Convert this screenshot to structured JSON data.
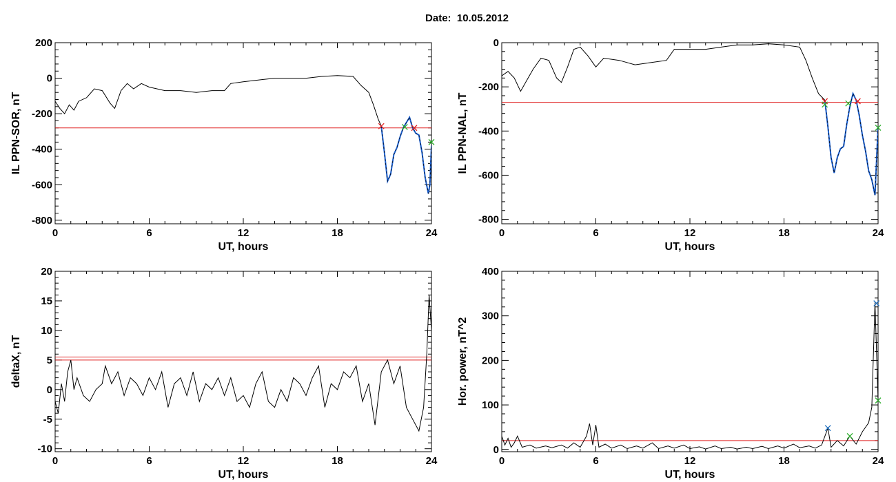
{
  "header": {
    "date_label": "Date:  10.05.2012"
  },
  "colors": {
    "threshold": "#e02020",
    "trace": "#000000",
    "highlight": "#1a5fd0",
    "marker_red": "#e02020",
    "marker_green": "#30b030",
    "marker_blue": "#2070c0"
  },
  "chart_data": [
    {
      "id": "il-sor",
      "type": "line",
      "xlabel": "UT, hours",
      "ylabel": "IL PPN-SOR, nT",
      "xlim": [
        0,
        24
      ],
      "ylim": [
        -820,
        200
      ],
      "xticks": [
        0,
        6,
        12,
        18,
        24
      ],
      "yticks": [
        -800,
        -600,
        -400,
        -200,
        0,
        200
      ],
      "thresholds": [
        -280
      ],
      "series": [
        {
          "values_xy": [
            [
              0,
              -130
            ],
            [
              0.3,
              -170
            ],
            [
              0.6,
              -200
            ],
            [
              0.9,
              -150
            ],
            [
              1.2,
              -180
            ],
            [
              1.5,
              -130
            ],
            [
              2,
              -110
            ],
            [
              2.5,
              -60
            ],
            [
              3,
              -70
            ],
            [
              3.5,
              -140
            ],
            [
              3.8,
              -170
            ],
            [
              4.2,
              -70
            ],
            [
              4.6,
              -30
            ],
            [
              5,
              -60
            ],
            [
              5.5,
              -30
            ],
            [
              6,
              -50
            ],
            [
              7,
              -70
            ],
            [
              8,
              -70
            ],
            [
              9,
              -80
            ],
            [
              10,
              -70
            ],
            [
              10.8,
              -70
            ],
            [
              11.2,
              -30
            ],
            [
              12,
              -20
            ],
            [
              13,
              -10
            ],
            [
              14,
              0
            ],
            [
              15,
              0
            ],
            [
              16,
              0
            ],
            [
              17,
              10
            ],
            [
              18,
              15
            ],
            [
              19,
              10
            ],
            [
              19.5,
              -40
            ],
            [
              20,
              -80
            ],
            [
              20.3,
              -150
            ],
            [
              20.6,
              -230
            ],
            [
              20.8,
              -270
            ]
          ]
        }
      ],
      "highlight": {
        "values_xy": [
          [
            20.8,
            -270
          ],
          [
            21,
            -420
          ],
          [
            21.2,
            -580
          ],
          [
            21.4,
            -540
          ],
          [
            21.6,
            -430
          ],
          [
            21.8,
            -390
          ],
          [
            22,
            -330
          ],
          [
            22.2,
            -280
          ],
          [
            22.4,
            -250
          ],
          [
            22.6,
            -220
          ],
          [
            22.8,
            -280
          ],
          [
            23,
            -310
          ],
          [
            23.2,
            -320
          ],
          [
            23.4,
            -420
          ],
          [
            23.6,
            -560
          ],
          [
            23.8,
            -650
          ],
          [
            23.9,
            -600
          ],
          [
            24,
            -380
          ]
        ]
      },
      "markers": [
        {
          "x": 20.8,
          "y": -270,
          "color": "red"
        },
        {
          "x": 22.3,
          "y": -275,
          "color": "green"
        },
        {
          "x": 22.9,
          "y": -280,
          "color": "red"
        },
        {
          "x": 24,
          "y": -360,
          "color": "green"
        }
      ]
    },
    {
      "id": "il-nal",
      "type": "line",
      "xlabel": "UT, hours",
      "ylabel": "IL PPN-NAL, nT",
      "xlim": [
        0,
        24
      ],
      "ylim": [
        -820,
        0
      ],
      "xticks": [
        0,
        6,
        12,
        18,
        24
      ],
      "yticks": [
        -800,
        -600,
        -400,
        -200,
        0
      ],
      "thresholds": [
        -270
      ],
      "series": [
        {
          "values_xy": [
            [
              0,
              -150
            ],
            [
              0.4,
              -130
            ],
            [
              0.8,
              -160
            ],
            [
              1.2,
              -220
            ],
            [
              1.6,
              -170
            ],
            [
              2,
              -120
            ],
            [
              2.5,
              -70
            ],
            [
              3,
              -80
            ],
            [
              3.5,
              -160
            ],
            [
              3.8,
              -180
            ],
            [
              4.2,
              -110
            ],
            [
              4.6,
              -30
            ],
            [
              5,
              -20
            ],
            [
              5.5,
              -60
            ],
            [
              6,
              -110
            ],
            [
              6.5,
              -70
            ],
            [
              7.5,
              -80
            ],
            [
              8.5,
              -100
            ],
            [
              9.5,
              -90
            ],
            [
              10.5,
              -80
            ],
            [
              11,
              -30
            ],
            [
              12,
              -30
            ],
            [
              13,
              -30
            ],
            [
              14,
              -20
            ],
            [
              15,
              -10
            ],
            [
              16,
              -10
            ],
            [
              17,
              -5
            ],
            [
              18,
              -10
            ],
            [
              19,
              -20
            ],
            [
              19.4,
              -80
            ],
            [
              19.8,
              -160
            ],
            [
              20.2,
              -230
            ],
            [
              20.6,
              -260
            ]
          ]
        }
      ],
      "highlight": {
        "values_xy": [
          [
            20.6,
            -260
          ],
          [
            20.8,
            -380
          ],
          [
            21,
            -520
          ],
          [
            21.2,
            -590
          ],
          [
            21.4,
            -520
          ],
          [
            21.6,
            -480
          ],
          [
            21.8,
            -470
          ],
          [
            22,
            -370
          ],
          [
            22.2,
            -290
          ],
          [
            22.4,
            -230
          ],
          [
            22.6,
            -260
          ],
          [
            22.8,
            -330
          ],
          [
            23,
            -420
          ],
          [
            23.2,
            -490
          ],
          [
            23.4,
            -580
          ],
          [
            23.6,
            -620
          ],
          [
            23.8,
            -690
          ],
          [
            24,
            -380
          ]
        ]
      },
      "markers": [
        {
          "x": 20.6,
          "y": -265,
          "color": "red"
        },
        {
          "x": 20.6,
          "y": -280,
          "color": "green"
        },
        {
          "x": 22.1,
          "y": -275,
          "color": "green"
        },
        {
          "x": 22.7,
          "y": -265,
          "color": "red"
        },
        {
          "x": 24,
          "y": -385,
          "color": "green"
        }
      ]
    },
    {
      "id": "deltax",
      "type": "line",
      "xlabel": "UT, hours",
      "ylabel": "deltaX, nT",
      "xlim": [
        0,
        24
      ],
      "ylim": [
        -10.5,
        20
      ],
      "xticks": [
        0,
        6,
        12,
        18,
        24
      ],
      "yticks": [
        -10,
        -5,
        0,
        5,
        10,
        15,
        20
      ],
      "thresholds": [
        5.5,
        5.0
      ],
      "series": [
        {
          "values_xy": [
            [
              0,
              -2
            ],
            [
              0.2,
              -4
            ],
            [
              0.4,
              1
            ],
            [
              0.6,
              -2
            ],
            [
              0.8,
              3
            ],
            [
              1,
              5
            ],
            [
              1.2,
              0
            ],
            [
              1.4,
              2
            ],
            [
              1.8,
              -1
            ],
            [
              2.2,
              -2
            ],
            [
              2.6,
              0
            ],
            [
              3,
              1
            ],
            [
              3.2,
              4
            ],
            [
              3.6,
              1
            ],
            [
              4,
              3
            ],
            [
              4.4,
              -1
            ],
            [
              4.8,
              2
            ],
            [
              5.2,
              1
            ],
            [
              5.6,
              -1
            ],
            [
              6,
              2
            ],
            [
              6.4,
              0
            ],
            [
              6.8,
              3
            ],
            [
              7.2,
              -3
            ],
            [
              7.6,
              1
            ],
            [
              8,
              2
            ],
            [
              8.4,
              -1
            ],
            [
              8.8,
              3
            ],
            [
              9.2,
              -2
            ],
            [
              9.6,
              1
            ],
            [
              10,
              0
            ],
            [
              10.4,
              2
            ],
            [
              10.8,
              -1
            ],
            [
              11.2,
              2
            ],
            [
              11.6,
              -2
            ],
            [
              12,
              -1
            ],
            [
              12.4,
              -3
            ],
            [
              12.8,
              1
            ],
            [
              13.2,
              3
            ],
            [
              13.6,
              -2
            ],
            [
              14,
              -3
            ],
            [
              14.4,
              0
            ],
            [
              14.8,
              -2
            ],
            [
              15.2,
              2
            ],
            [
              15.6,
              1
            ],
            [
              16,
              -1
            ],
            [
              16.4,
              2
            ],
            [
              16.8,
              4
            ],
            [
              17.2,
              -3
            ],
            [
              17.6,
              1
            ],
            [
              18,
              0
            ],
            [
              18.4,
              3
            ],
            [
              18.8,
              2
            ],
            [
              19.2,
              4
            ],
            [
              19.6,
              -2
            ],
            [
              20,
              1
            ],
            [
              20.4,
              -6
            ],
            [
              20.8,
              3
            ],
            [
              21.2,
              5
            ],
            [
              21.6,
              1
            ],
            [
              22,
              4
            ],
            [
              22.4,
              -3
            ],
            [
              22.8,
              -5
            ],
            [
              23.2,
              -7
            ],
            [
              23.5,
              -3
            ],
            [
              23.7,
              6
            ],
            [
              23.85,
              16
            ],
            [
              24,
              10
            ]
          ]
        }
      ],
      "markers": []
    },
    {
      "id": "hor-power",
      "type": "line",
      "xlabel": "UT, hours",
      "ylabel": "Hor. power, nT^2",
      "xlim": [
        0,
        24
      ],
      "ylim": [
        -5,
        400
      ],
      "xticks": [
        0,
        6,
        12,
        18,
        24
      ],
      "yticks": [
        0,
        100,
        200,
        300,
        400
      ],
      "thresholds": [
        20
      ],
      "series": [
        {
          "values_xy": [
            [
              0,
              30
            ],
            [
              0.2,
              10
            ],
            [
              0.4,
              25
            ],
            [
              0.6,
              5
            ],
            [
              0.8,
              15
            ],
            [
              1,
              30
            ],
            [
              1.3,
              5
            ],
            [
              1.8,
              10
            ],
            [
              2.2,
              3
            ],
            [
              2.8,
              8
            ],
            [
              3.2,
              4
            ],
            [
              3.8,
              10
            ],
            [
              4.2,
              3
            ],
            [
              4.6,
              15
            ],
            [
              5,
              5
            ],
            [
              5.4,
              30
            ],
            [
              5.6,
              58
            ],
            [
              5.8,
              10
            ],
            [
              6,
              55
            ],
            [
              6.2,
              5
            ],
            [
              6.6,
              12
            ],
            [
              7,
              3
            ],
            [
              7.6,
              10
            ],
            [
              8,
              2
            ],
            [
              8.6,
              8
            ],
            [
              9,
              3
            ],
            [
              9.6,
              15
            ],
            [
              10,
              2
            ],
            [
              10.6,
              8
            ],
            [
              11,
              3
            ],
            [
              11.6,
              10
            ],
            [
              12,
              2
            ],
            [
              12.6,
              6
            ],
            [
              13,
              1
            ],
            [
              13.6,
              8
            ],
            [
              14,
              2
            ],
            [
              14.6,
              5
            ],
            [
              15,
              1
            ],
            [
              15.6,
              5
            ],
            [
              16,
              2
            ],
            [
              16.6,
              7
            ],
            [
              17,
              2
            ],
            [
              17.6,
              8
            ],
            [
              18,
              3
            ],
            [
              18.6,
              12
            ],
            [
              19,
              4
            ],
            [
              19.6,
              8
            ],
            [
              20,
              3
            ],
            [
              20.4,
              10
            ],
            [
              20.8,
              48
            ],
            [
              21,
              5
            ],
            [
              21.4,
              20
            ],
            [
              21.8,
              8
            ],
            [
              22.2,
              30
            ],
            [
              22.6,
              12
            ],
            [
              23,
              40
            ],
            [
              23.4,
              60
            ],
            [
              23.6,
              95
            ],
            [
              23.8,
              330
            ],
            [
              24,
              110
            ]
          ]
        }
      ],
      "markers": [
        {
          "x": 20.8,
          "y": 48,
          "color": "blue"
        },
        {
          "x": 22.2,
          "y": 30,
          "color": "green"
        },
        {
          "x": 23.9,
          "y": 328,
          "color": "blue"
        },
        {
          "x": 24,
          "y": 110,
          "color": "green"
        }
      ]
    }
  ]
}
